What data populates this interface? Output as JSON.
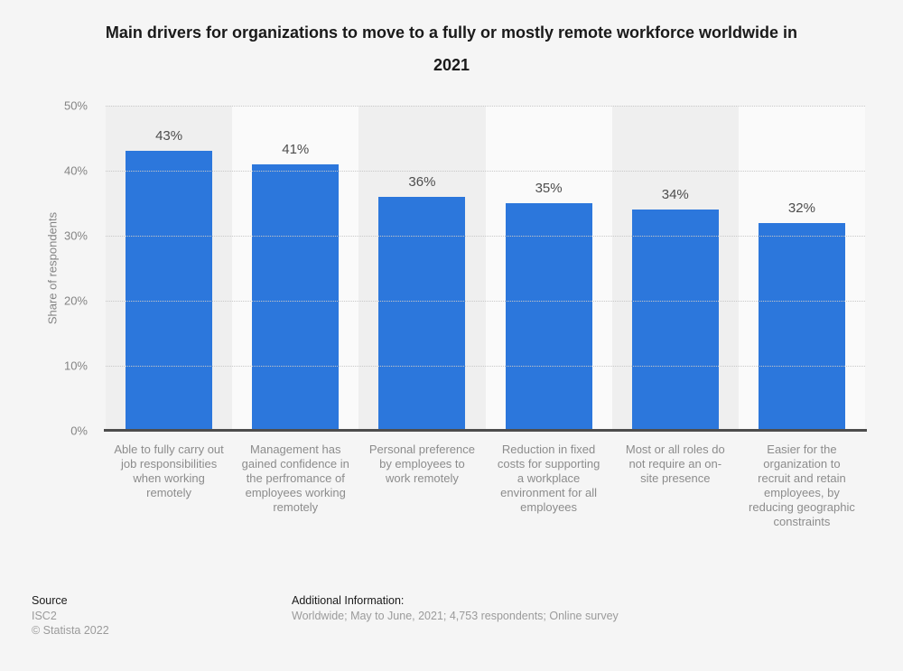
{
  "title": "Main drivers for organizations to move to a fully or mostly remote workforce worldwide in 2021",
  "chart_data": {
    "type": "bar",
    "title": "Main drivers for organizations to move to a fully or mostly remote workforce worldwide in 2021",
    "ylabel": "Share of respondents",
    "xlabel": "",
    "ylim": [
      0,
      50
    ],
    "yticks": [
      "50%",
      "40%",
      "30%",
      "20%",
      "10%",
      "0%"
    ],
    "grid": true,
    "legend_position": "none",
    "bar_color": "#2c77dc",
    "categories": [
      "Able to fully carry out job responsibilities when working remotely",
      "Management has gained confidence in the perfromance of employees working remotely",
      "Personal preference by employees to work remotely",
      "Reduction in fixed costs for supporting a workplace environment for all employees",
      "Most or all roles do not require an on-site presence",
      "Easier for the organization to recruit and retain employees, by reducing geographic constraints"
    ],
    "values": [
      43,
      41,
      36,
      35,
      34,
      32
    ],
    "value_labels": [
      "43%",
      "41%",
      "36%",
      "35%",
      "34%",
      "32%"
    ]
  },
  "footer": {
    "source_heading": "Source",
    "source_name": "ISC2",
    "copyright": "© Statista 2022",
    "additional_heading": "Additional Information:",
    "additional_text": "Worldwide; May to June, 2021; 4,753 respondents; Online survey"
  }
}
